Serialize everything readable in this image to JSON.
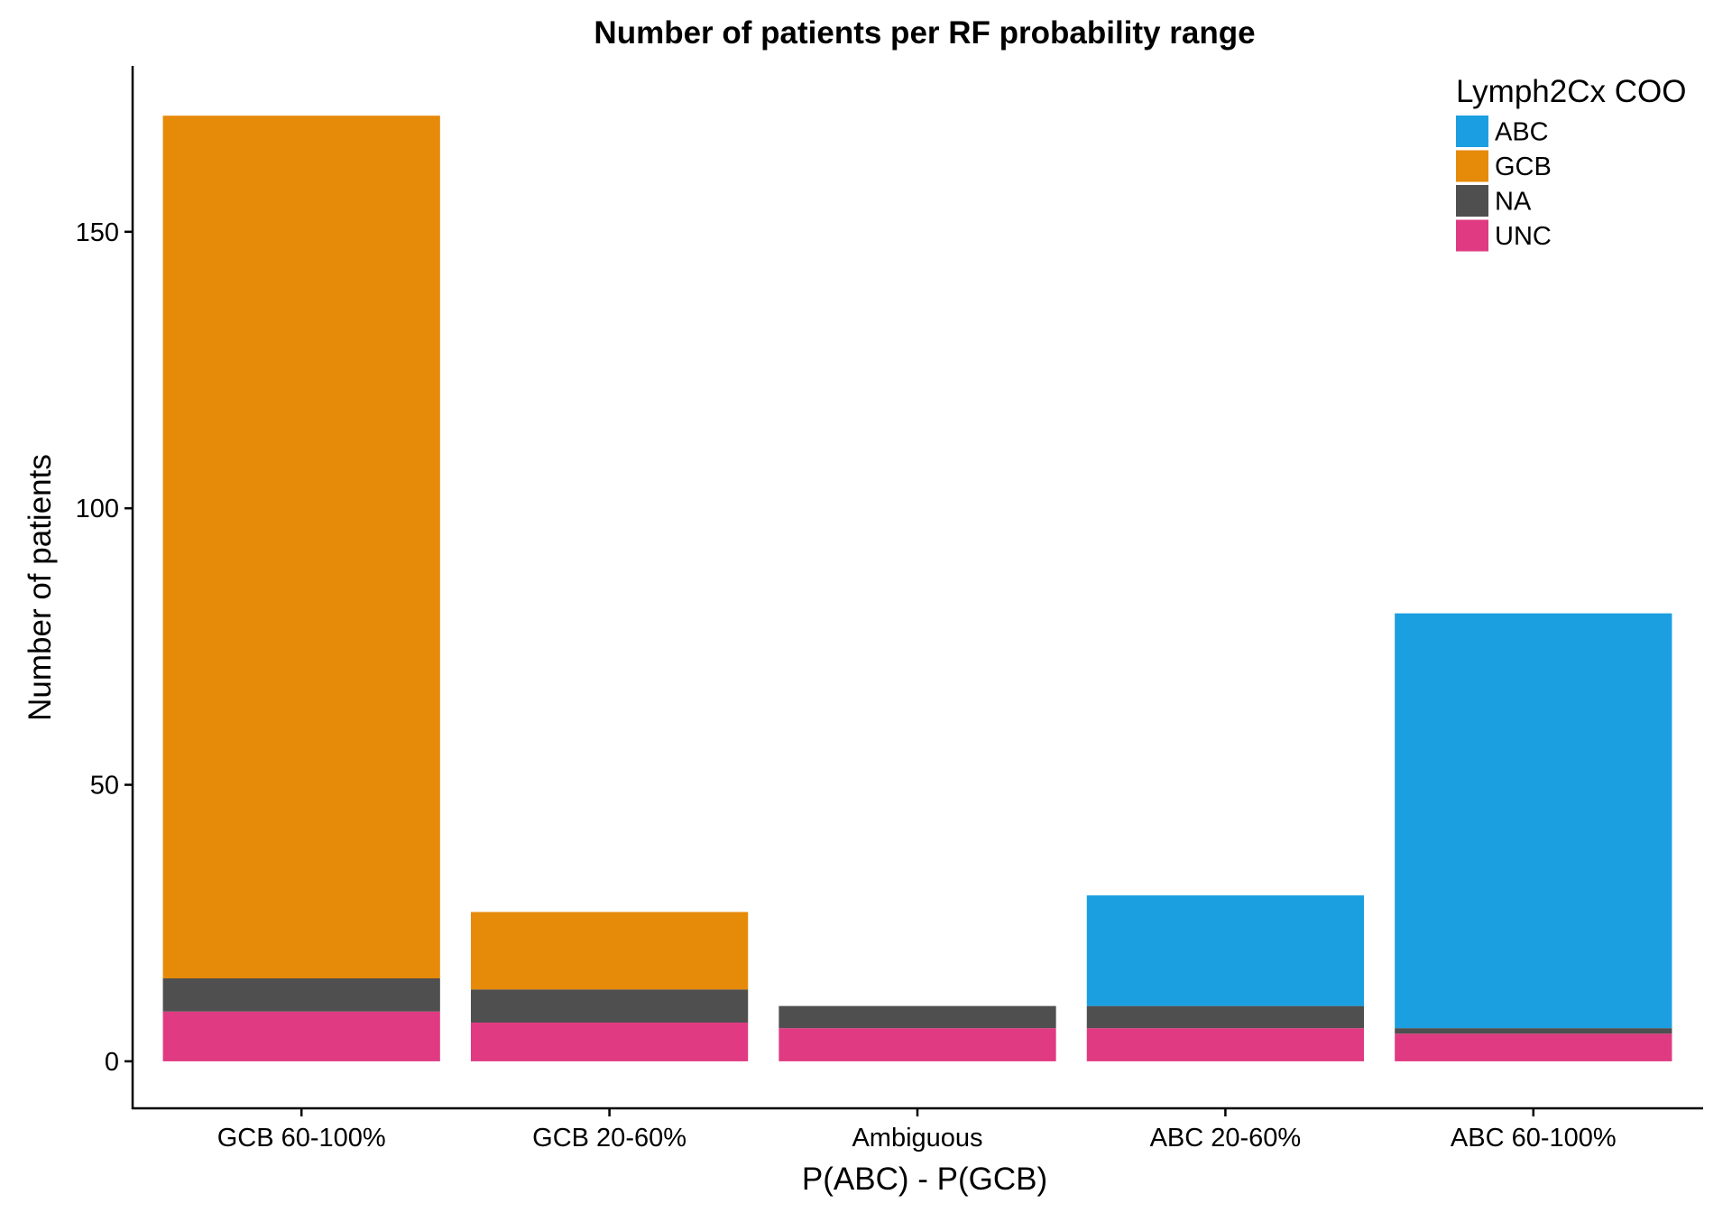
{
  "chart_data": {
    "type": "bar",
    "stacked": true,
    "title": "Number of patients per RF probability range",
    "xlabel": "P(ABC) - P(GCB)",
    "ylabel": "Number of patients",
    "categories": [
      "GCB 60-100%",
      "GCB 20-60%",
      "Ambiguous",
      "ABC 20-60%",
      "ABC 60-100%"
    ],
    "ylim": [
      -8.5,
      180
    ],
    "yticks": [
      0,
      50,
      100,
      150
    ],
    "grid": false,
    "legend_title": "Lymph2Cx COO",
    "legend_position": "top-right",
    "stack_order": [
      "UNC",
      "NA",
      "GCB",
      "ABC"
    ],
    "series": [
      {
        "name": "ABC",
        "color": "#1b9fe0",
        "values": [
          0,
          0,
          0,
          20,
          75
        ]
      },
      {
        "name": "GCB",
        "color": "#e68a0a",
        "values": [
          156,
          14,
          0,
          0,
          0
        ]
      },
      {
        "name": "NA",
        "color": "#4f4f4f",
        "values": [
          6,
          6,
          4,
          4,
          1
        ]
      },
      {
        "name": "UNC",
        "color": "#e03a82",
        "values": [
          9,
          7,
          6,
          6,
          5
        ]
      }
    ]
  }
}
